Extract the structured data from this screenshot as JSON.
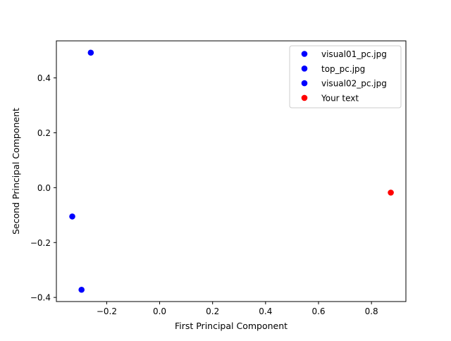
{
  "chart_data": {
    "type": "scatter",
    "title": "",
    "xlabel": "First Principal Component",
    "ylabel": "Second Principal Component",
    "xlim": [
      -0.39,
      0.93
    ],
    "ylim": [
      -0.415,
      0.535
    ],
    "xticks": [
      -0.2,
      0.0,
      0.2,
      0.4,
      0.6,
      0.8
    ],
    "xtick_labels": [
      "−0.2",
      "0.0",
      "0.2",
      "0.4",
      "0.6",
      "0.8"
    ],
    "yticks": [
      -0.4,
      -0.2,
      0.0,
      0.2,
      0.4
    ],
    "ytick_labels": [
      "−0.4",
      "−0.2",
      "0.0",
      "0.2",
      "0.4"
    ],
    "grid": false,
    "legend_position": "top-right",
    "series": [
      {
        "name": "visual01_pc.jpg",
        "color": "#0000ff",
        "points": [
          {
            "x": -0.26,
            "y": 0.492
          }
        ]
      },
      {
        "name": "top_pc.jpg",
        "color": "#0000ff",
        "points": [
          {
            "x": -0.33,
            "y": -0.105
          }
        ]
      },
      {
        "name": "visual02_pc.jpg",
        "color": "#0000ff",
        "points": [
          {
            "x": -0.295,
            "y": -0.372
          }
        ]
      },
      {
        "name": "Your text",
        "color": "#ff0000",
        "points": [
          {
            "x": 0.873,
            "y": -0.018
          }
        ]
      }
    ]
  }
}
